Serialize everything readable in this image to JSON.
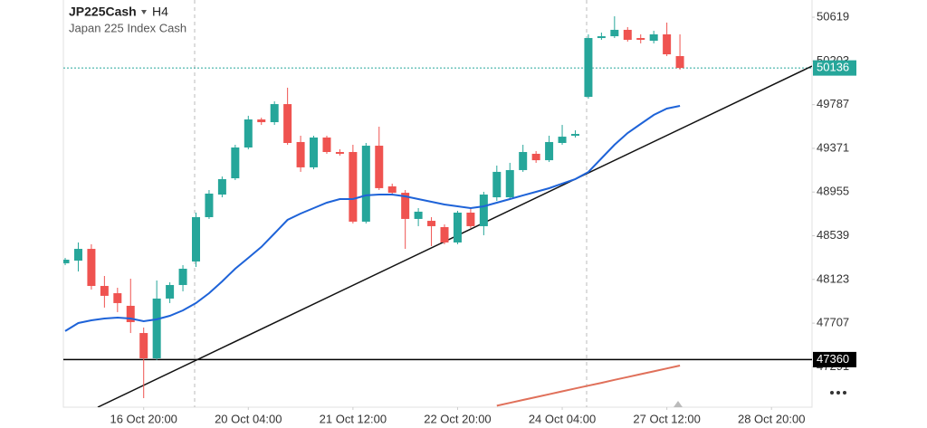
{
  "chart_data": {
    "type": "candlestick",
    "symbol": "JP225Cash",
    "timeframe": "H4",
    "subtitle": "Japan 225 Index Cash",
    "open": [
      48277,
      48302,
      48414,
      48061,
      47992,
      47872,
      47613,
      47372,
      47941,
      48070,
      48294,
      48716,
      48931,
      49086,
      49379,
      49646,
      49620,
      49792,
      49431,
      49190,
      49474,
      49336,
      49336,
      48673,
      49396,
      49009,
      48948,
      48699,
      48681,
      48621,
      48475,
      48759,
      48630,
      48905,
      48905,
      49164,
      49319,
      49258,
      49422,
      49491,
      49861,
      50421,
      50438,
      50499,
      50421,
      50395,
      50456,
      50249
    ],
    "high": [
      48328,
      48475,
      48458,
      48156,
      48044,
      48130,
      47665,
      48113,
      48096,
      48259,
      48759,
      48974,
      49103,
      49405,
      49681,
      49663,
      49818,
      49948,
      49491,
      49491,
      49491,
      49362,
      49405,
      49422,
      49577,
      49035,
      48974,
      48802,
      48716,
      48647,
      48776,
      48802,
      48957,
      49207,
      49233,
      49405,
      49345,
      49491,
      49594,
      49543,
      50456,
      50473,
      50628,
      50525,
      50456,
      50490,
      50568,
      50456
    ],
    "low": [
      48259,
      48199,
      48027,
      47855,
      47812,
      47613,
      46993,
      47355,
      47898,
      48010,
      48242,
      48699,
      48905,
      49069,
      49362,
      49594,
      49594,
      49405,
      49147,
      49172,
      49319,
      49302,
      48656,
      48656,
      48974,
      48922,
      48414,
      48630,
      48440,
      48458,
      48458,
      48612,
      48544,
      48871,
      48888,
      49147,
      49233,
      49241,
      49405,
      49474,
      49844,
      50404,
      50421,
      50387,
      50370,
      50370,
      50249,
      50120
    ],
    "close": [
      48311,
      48414,
      48061,
      47967,
      47898,
      47717,
      47372,
      47941,
      48070,
      48225,
      48716,
      48940,
      49078,
      49379,
      49646,
      49620,
      49792,
      49422,
      49190,
      49474,
      49336,
      49319,
      48673,
      49396,
      48992,
      48948,
      48699,
      48768,
      48630,
      48475,
      48759,
      48630,
      48931,
      49147,
      49164,
      49336,
      49258,
      49431,
      49482,
      49508,
      50421,
      50438,
      50499,
      50404,
      50404,
      50456,
      50266,
      50136
    ],
    "up_color": "#26a69a",
    "down_color": "#ef5350",
    "series": [
      {
        "color": "#1e63d8",
        "values": [
          47631,
          47708,
          47734,
          47751,
          47760,
          47751,
          47725,
          47743,
          47777,
          47829,
          47898,
          47992,
          48104,
          48225,
          48328,
          48432,
          48561,
          48690,
          48750,
          48802,
          48854,
          48888,
          48888,
          48923,
          48931,
          48931,
          48914,
          48888,
          48862,
          48836,
          48819,
          48802,
          48819,
          48854,
          48888,
          48923,
          48957,
          48991,
          49035,
          49078,
          49146,
          49276,
          49405,
          49517,
          49603,
          49689,
          49749,
          49775
        ]
      },
      {
        "color": "#e0705a",
        "values": [
          null,
          null,
          null,
          null,
          null,
          null,
          null,
          null,
          null,
          null,
          null,
          null,
          null,
          null,
          null,
          null,
          null,
          null,
          null,
          null,
          null,
          null,
          null,
          null,
          null,
          null,
          null,
          null,
          null,
          null,
          null,
          null,
          null,
          46921,
          46948,
          46976,
          47003,
          47030,
          47058,
          47085,
          47112,
          47139,
          47167,
          47194,
          47221,
          47248,
          47276,
          47303
        ]
      }
    ],
    "ylim": [
      46907,
      50783
    ],
    "yticks": [
      47291,
      47707,
      48123,
      48539,
      48955,
      49371,
      49787,
      50203,
      50619
    ],
    "xlim": [
      -0.14,
      57.1
    ],
    "xticks": [
      {
        "value": 6,
        "label": "16 Oct 20:00"
      },
      {
        "value": 14,
        "label": "20 Oct 04:00"
      },
      {
        "value": 22,
        "label": "21 Oct 12:00"
      },
      {
        "value": 30,
        "label": "22 Oct 20:00"
      },
      {
        "value": 38,
        "label": "24 Oct 04:00"
      },
      {
        "value": 46,
        "label": "27 Oct 12:00"
      },
      {
        "value": 54,
        "label": "28 Oct 20:00"
      }
    ],
    "last_price": {
      "value": 50136,
      "color": "#26a69a"
    },
    "horizontal_line": {
      "value": 47360,
      "color": "#000000"
    },
    "trend_line": {
      "x": [
        2.49,
        57.1
      ],
      "y": [
        46907,
        50154
      ]
    }
  }
}
